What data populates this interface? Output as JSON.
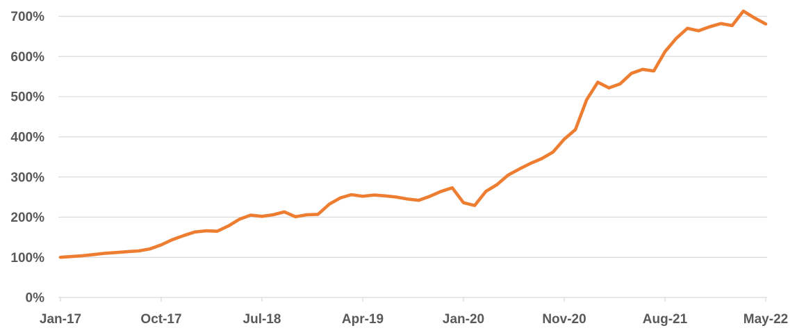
{
  "chart_data": {
    "type": "line",
    "title": "",
    "xlabel": "",
    "ylabel": "",
    "ylim": [
      0,
      700
    ],
    "grid": "horizontal",
    "legend": "none",
    "y_tick_labels": [
      "0%",
      "100%",
      "200%",
      "300%",
      "400%",
      "500%",
      "600%",
      "700%"
    ],
    "x_tick_labels": [
      "Jan-17",
      "Oct-17",
      "Jul-18",
      "Apr-19",
      "Jan-20",
      "Nov-20",
      "Aug-21",
      "May-22"
    ],
    "x_tick_indices": [
      0,
      9,
      18,
      27,
      36,
      45,
      54,
      63
    ],
    "series": [
      {
        "name": "",
        "color": "#ED7D31",
        "values": [
          100,
          102,
          104,
          107,
          110,
          112,
          114,
          116,
          121,
          131,
          144,
          154,
          163,
          166,
          165,
          178,
          195,
          205,
          202,
          206,
          213,
          201,
          206,
          207,
          232,
          248,
          256,
          252,
          255,
          253,
          250,
          245,
          242,
          252,
          264,
          273,
          236,
          229,
          264,
          281,
          305,
          320,
          334,
          346,
          362,
          394,
          418,
          492,
          536,
          522,
          532,
          558,
          568,
          564,
          612,
          645,
          670,
          664,
          674,
          682,
          677,
          713,
          696,
          681
        ]
      }
    ],
    "colors": {
      "line": "#ED7D31",
      "gridline": "#D9D9D9",
      "axis": "#D9D9D9",
      "label_text": "#595959",
      "background": "#FFFFFF"
    }
  }
}
